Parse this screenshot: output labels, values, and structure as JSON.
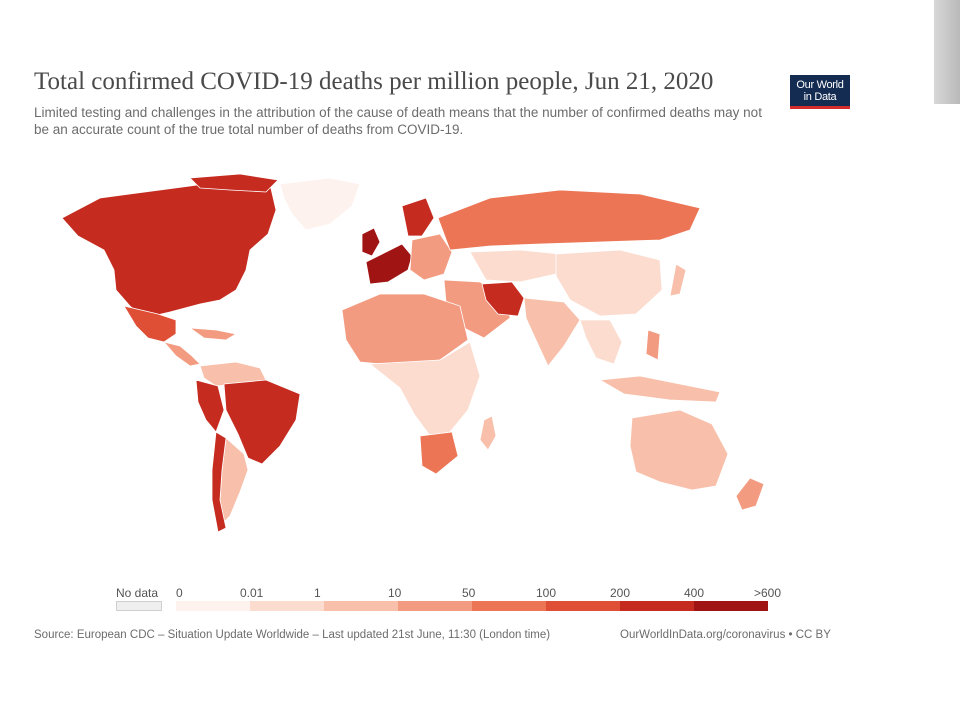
{
  "header": {
    "title": "Total confirmed COVID-19 deaths per million people, Jun 21, 2020",
    "subtitle": "Limited testing and challenges in the attribution of the cause of death means that the number of confirmed deaths may not be an accurate count of the true total number of deaths from COVID-19.",
    "logo_line1": "Our World",
    "logo_line2": "in Data"
  },
  "legend": {
    "no_data_label": "No data",
    "bins": [
      {
        "label": "0",
        "color": "#fef2ee"
      },
      {
        "label": "0.01",
        "color": "#fbdccf"
      },
      {
        "label": "1",
        "color": "#f8c0aa"
      },
      {
        "label": "10",
        "color": "#f39b80"
      },
      {
        "label": "50",
        "color": "#ec7555"
      },
      {
        "label": "100",
        "color": "#df4f35"
      },
      {
        "label": "200",
        "color": "#c62b20"
      },
      {
        "label": "400",
        "color": "#a11414"
      }
    ],
    "max_label": ">600",
    "no_data_color": "#efefef"
  },
  "map_colors": {
    "na": "#c62b20",
    "greenland": "#fef2ee",
    "mexico": "#df4f35",
    "central_america": "#f39b80",
    "south_america_north": "#f8c0aa",
    "peru": "#c62b20",
    "brazil": "#c62b20",
    "chile": "#c62b20",
    "argentina": "#f8c0aa",
    "w_europe": "#a11414",
    "uk": "#a11414",
    "scandinavia": "#c62b20",
    "russia": "#ec7555",
    "e_europe": "#f39b80",
    "middle_east": "#f39b80",
    "iran": "#c62b20",
    "central_asia": "#fbdccf",
    "china": "#fbdccf",
    "india": "#f8c0aa",
    "se_asia": "#fbdccf",
    "africa_north": "#f39b80",
    "africa_central": "#fbdccf",
    "south_africa": "#ec7555",
    "madagascar": "#f8c0aa",
    "australia": "#f8c0aa",
    "indonesia": "#f8c0aa",
    "new_zealand": "#f39b80",
    "japan": "#f8c0aa",
    "philippines": "#f39b80"
  },
  "footer": {
    "source": "Source: European CDC – Situation Update Worldwide – Last updated 21st June, 11:30 (London time)",
    "credit": "OurWorldInData.org/coronavirus • CC BY"
  }
}
